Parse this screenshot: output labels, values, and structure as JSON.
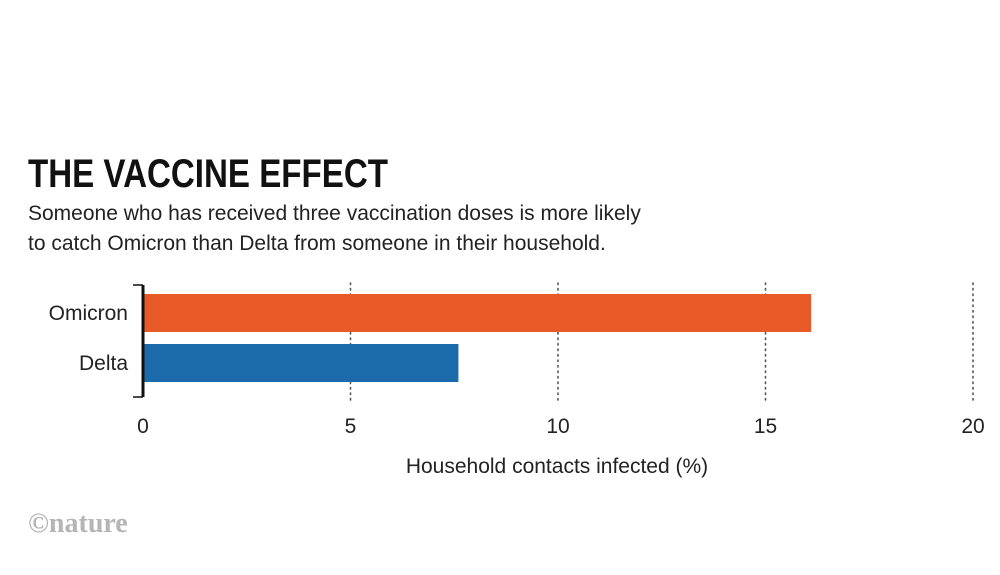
{
  "chart_data": {
    "type": "bar",
    "orientation": "horizontal",
    "title": "THE VACCINE EFFECT",
    "subtitle_lines": [
      "Someone who has received three vaccination doses is more likely",
      "to catch Omicron than Delta from someone in their household."
    ],
    "categories": [
      "Omicron",
      "Delta"
    ],
    "values": [
      16.1,
      7.6
    ],
    "colors": [
      "#e85a27",
      "#1a6aac"
    ],
    "xlabel": "Household contacts infected (%)",
    "ylabel": "",
    "xlim": [
      0,
      20
    ],
    "xticks": [
      0,
      5,
      10,
      15,
      20
    ],
    "grid": "dotted vertical",
    "credit": "©nature"
  }
}
